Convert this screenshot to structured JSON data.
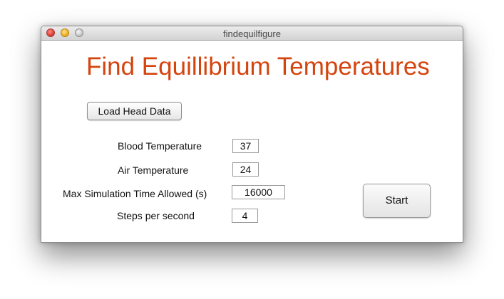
{
  "window": {
    "title": "findequilfigure"
  },
  "main": {
    "heading": "Find Equillibrium Temperatures",
    "heading_color": "#d4440e",
    "load_button_label": "Load Head Data",
    "start_button_label": "Start",
    "fields": [
      {
        "label": "Blood Temperature",
        "value": "37"
      },
      {
        "label": "Air Temperature",
        "value": "24"
      },
      {
        "label": "Max Simulation Time Allowed (s)",
        "value": "16000"
      },
      {
        "label": "Steps per second",
        "value": "4"
      }
    ]
  }
}
